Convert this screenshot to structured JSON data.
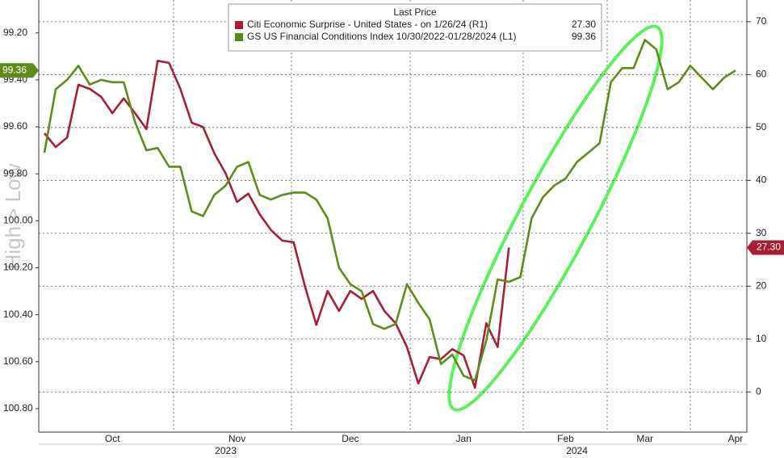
{
  "chart_data": {
    "type": "line",
    "y_axis_label": "High > Low",
    "legend_title": "Last Price",
    "categories": [
      null,
      null,
      null,
      null,
      null,
      null,
      "Oct",
      null,
      null,
      null,
      null,
      null,
      null,
      null,
      null,
      null,
      null,
      "Nov",
      null,
      null,
      null,
      null,
      null,
      null,
      null,
      null,
      null,
      "Dec",
      null,
      null,
      null,
      null,
      null,
      null,
      null,
      null,
      null,
      "Jan",
      null,
      null,
      null,
      null,
      null,
      null,
      null,
      null,
      "Feb",
      null,
      null,
      null,
      null,
      null,
      null,
      "Mar",
      null,
      null,
      null,
      null,
      null,
      null,
      null,
      "Apr"
    ],
    "years": [
      null,
      null,
      null,
      null,
      null,
      null,
      null,
      null,
      null,
      null,
      null,
      null,
      null,
      null,
      null,
      null,
      "2023",
      null,
      null,
      null,
      null,
      null,
      null,
      null,
      null,
      null,
      null,
      null,
      null,
      null,
      null,
      null,
      null,
      null,
      null,
      null,
      null,
      null,
      null,
      null,
      null,
      null,
      null,
      null,
      null,
      null,
      null,
      "2024",
      null,
      null,
      null,
      null,
      null,
      null,
      null,
      null,
      null,
      null,
      null,
      null,
      null,
      null
    ],
    "series": [
      {
        "name": "Citi Economic Surprise - United States -   on 1/26/24  (R1)",
        "color": "#a81e32",
        "axis": "y2",
        "last_value_label": "27.30",
        "values": [
          48.9,
          46.3,
          48.1,
          58.1,
          57.3,
          55.8,
          52.7,
          55.5,
          52.7,
          49.7,
          62.6,
          62.2,
          57.3,
          50.9,
          50.1,
          45.1,
          41.3,
          35.9,
          37.5,
          33.6,
          30.6,
          28.6,
          28.3,
          19.9,
          12.7,
          19.1,
          15.3,
          19.1,
          17.6,
          19.1,
          15.3,
          13.0,
          8.5,
          1.6,
          6.6,
          6.2,
          8.1,
          6.9,
          0.8,
          13.0,
          8.5,
          27.3,
          null,
          null,
          null,
          null,
          null,
          null,
          null,
          null,
          null,
          null,
          null,
          null,
          null,
          null,
          null,
          null,
          null,
          null,
          null,
          null
        ]
      },
      {
        "name": "GS US Financial Conditions Index 10/30/2022-01/28/2024  (L1)",
        "color": "#5e8c1a",
        "axis": "y",
        "last_value_label": "99.36",
        "values": [
          99.71,
          99.44,
          99.4,
          99.34,
          99.42,
          99.4,
          99.41,
          99.41,
          99.58,
          99.7,
          99.69,
          99.77,
          99.77,
          99.96,
          99.98,
          99.89,
          99.85,
          99.77,
          99.75,
          99.89,
          99.91,
          99.89,
          99.88,
          99.88,
          99.91,
          99.99,
          100.2,
          100.27,
          100.3,
          100.44,
          100.46,
          100.44,
          100.27,
          100.35,
          100.42,
          100.61,
          100.57,
          100.66,
          100.68,
          100.51,
          100.25,
          100.26,
          100.24,
          99.99,
          99.9,
          99.85,
          99.82,
          99.75,
          99.71,
          99.67,
          99.41,
          99.35,
          99.35,
          99.23,
          99.27,
          99.44,
          99.41,
          99.34,
          99.39,
          99.44,
          99.39,
          99.36
        ]
      }
    ],
    "ylim": [
      100.9,
      99.06
    ],
    "yticks": [
      {
        "value": 99.2,
        "label": "99.20"
      },
      {
        "value": 99.4,
        "label": "99.40"
      },
      {
        "value": 99.6,
        "label": "99.60"
      },
      {
        "value": 99.8,
        "label": "99.80"
      },
      {
        "value": 100.0,
        "label": "100.00"
      },
      {
        "value": 100.2,
        "label": "100.20"
      },
      {
        "value": 100.4,
        "label": "100.40"
      },
      {
        "value": 100.6,
        "label": "100.60"
      },
      {
        "value": 100.8,
        "label": "100.80"
      }
    ],
    "y2lim": [
      -7.6,
      74.1
    ],
    "y2ticks": [
      0,
      10,
      20,
      30,
      40,
      50,
      60,
      70
    ],
    "grid": true
  }
}
